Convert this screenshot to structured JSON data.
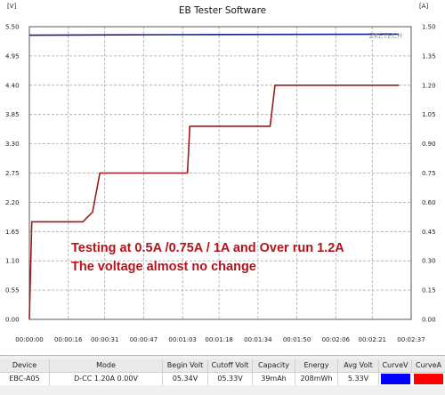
{
  "app": {
    "title": "EB Tester Software"
  },
  "chart_data": {
    "type": "line",
    "title": "EB Tester Software",
    "y_left": {
      "unit": "[V]",
      "ticks": [
        0.0,
        0.55,
        1.1,
        1.65,
        2.2,
        2.75,
        3.3,
        3.85,
        4.4,
        4.95,
        5.5
      ],
      "labels": [
        "0.00",
        "0.55",
        "1.10",
        "1.65",
        "2.20",
        "2.75",
        "3.30",
        "3.85",
        "4.40",
        "4.95",
        "5.50"
      ],
      "range": [
        0.0,
        5.5
      ]
    },
    "y_right": {
      "unit": "[A]",
      "ticks": [
        0.0,
        0.15,
        0.3,
        0.45,
        0.6,
        0.75,
        0.9,
        1.05,
        1.2,
        1.35,
        1.5
      ],
      "labels": [
        "0.00",
        "0.15",
        "0.30",
        "0.45",
        "0.60",
        "0.75",
        "0.90",
        "1.05",
        "1.20",
        "1.35",
        "1.50"
      ],
      "range": [
        0.0,
        1.5
      ]
    },
    "x": {
      "ticks": [
        0,
        16,
        31,
        47,
        63,
        78,
        94,
        110,
        126,
        141,
        157
      ],
      "labels": [
        "00:00:00",
        "00:00:16",
        "00:00:31",
        "00:00:47",
        "00:01:03",
        "00:01:18",
        "00:01:34",
        "00:01:50",
        "00:02:06",
        "00:02:21",
        "00:02:37"
      ],
      "range": [
        0,
        157
      ]
    },
    "grid": true,
    "series": [
      {
        "axis": "left",
        "color": "#1a237e",
        "points": [
          [
            0,
            5.34
          ],
          [
            55,
            5.35
          ],
          [
            152,
            5.36
          ]
        ]
      },
      {
        "axis": "right",
        "color": "#9b1b1b",
        "points": [
          [
            0,
            0.0
          ],
          [
            1,
            0.5
          ],
          [
            22,
            0.5
          ],
          [
            26,
            0.55
          ],
          [
            29,
            0.75
          ],
          [
            65,
            0.75
          ],
          [
            66,
            0.99
          ],
          [
            99,
            0.99
          ],
          [
            101,
            1.2
          ],
          [
            152,
            1.2
          ]
        ]
      }
    ],
    "annotations": [
      "Testing at 0.5A /0.75A / 1A and Over run 1.2A",
      "The voltage almost no change"
    ],
    "watermark": "ZKETECH"
  },
  "status_table": {
    "headers": [
      "Device",
      "Mode",
      "Begin Volt",
      "Cutoff Volt",
      "Capacity",
      "Energy",
      "Avg Volt",
      "CurveV",
      "CurveA"
    ],
    "row": {
      "device": "EBC-A05",
      "mode": "D-CC 1.20A 0.00V",
      "begin_volt": "05.34V",
      "cutoff_volt": "05.33V",
      "capacity": "39mAh",
      "energy": "208mWh",
      "avg_volt": "5.33V",
      "curve_v_color": "#0000ff",
      "curve_a_color": "#ff0000"
    }
  }
}
